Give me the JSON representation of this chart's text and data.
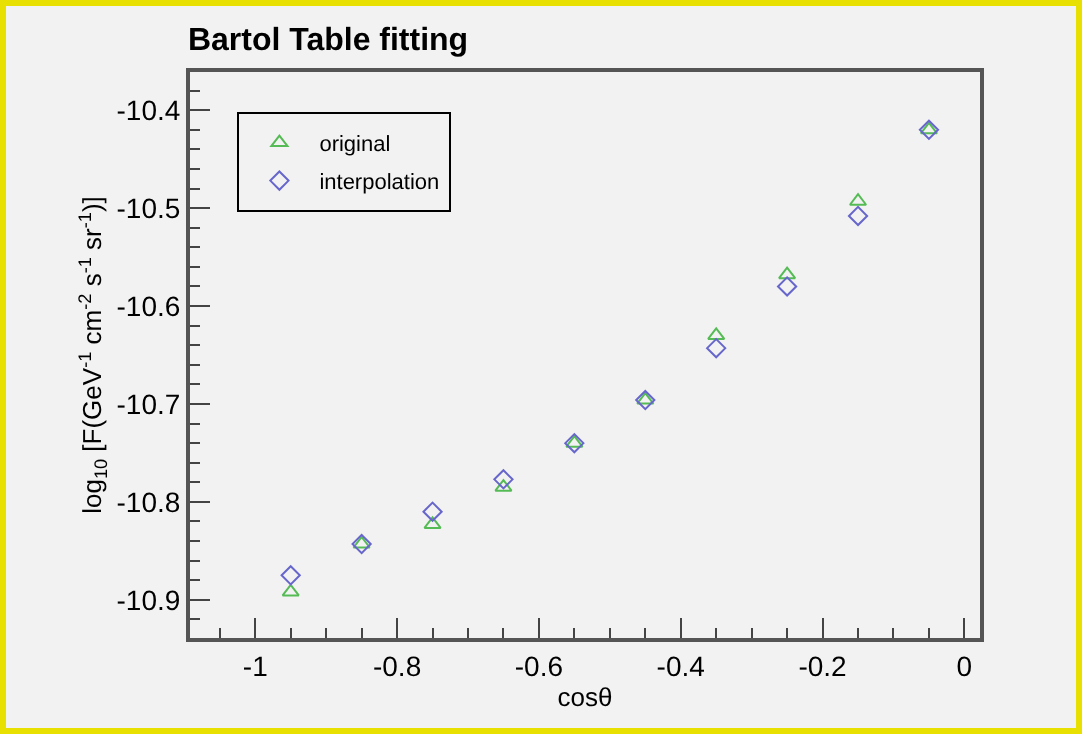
{
  "chart_data": {
    "type": "scatter",
    "title": "Bartol Table fitting",
    "xlabel": "cosθ",
    "ylabel": "log$_{10}$ [F(GeV$^{-1}$ cm$^{-2}$ s$^{-1}$ sr$^{-1}$)]",
    "x": [
      -0.95,
      -0.85,
      -0.75,
      -0.65,
      -0.55,
      -0.45,
      -0.35,
      -0.25,
      -0.15,
      -0.05
    ],
    "series": [
      {
        "name": "original",
        "color": "#55bb55",
        "marker": "triangle",
        "values": [
          -10.892,
          -10.843,
          -10.823,
          -10.785,
          -10.74,
          -10.696,
          -10.63,
          -10.568,
          -10.493,
          -10.42
        ]
      },
      {
        "name": "interpolation",
        "color": "#6666cc",
        "marker": "diamond",
        "values": [
          -10.875,
          -10.843,
          -10.81,
          -10.777,
          -10.74,
          -10.696,
          -10.643,
          -10.58,
          -10.508,
          -10.42
        ]
      }
    ],
    "xlim": [
      -1.092,
      0.022
    ],
    "xticks": [
      -1,
      -0.8,
      -0.6,
      -0.4,
      -0.2,
      0
    ],
    "ylim": [
      -10.939,
      -10.361
    ],
    "yticks": [
      -10.9,
      -10.8,
      -10.7,
      -10.6,
      -10.5,
      -10.4
    ],
    "grid": false,
    "legend": "top left"
  }
}
